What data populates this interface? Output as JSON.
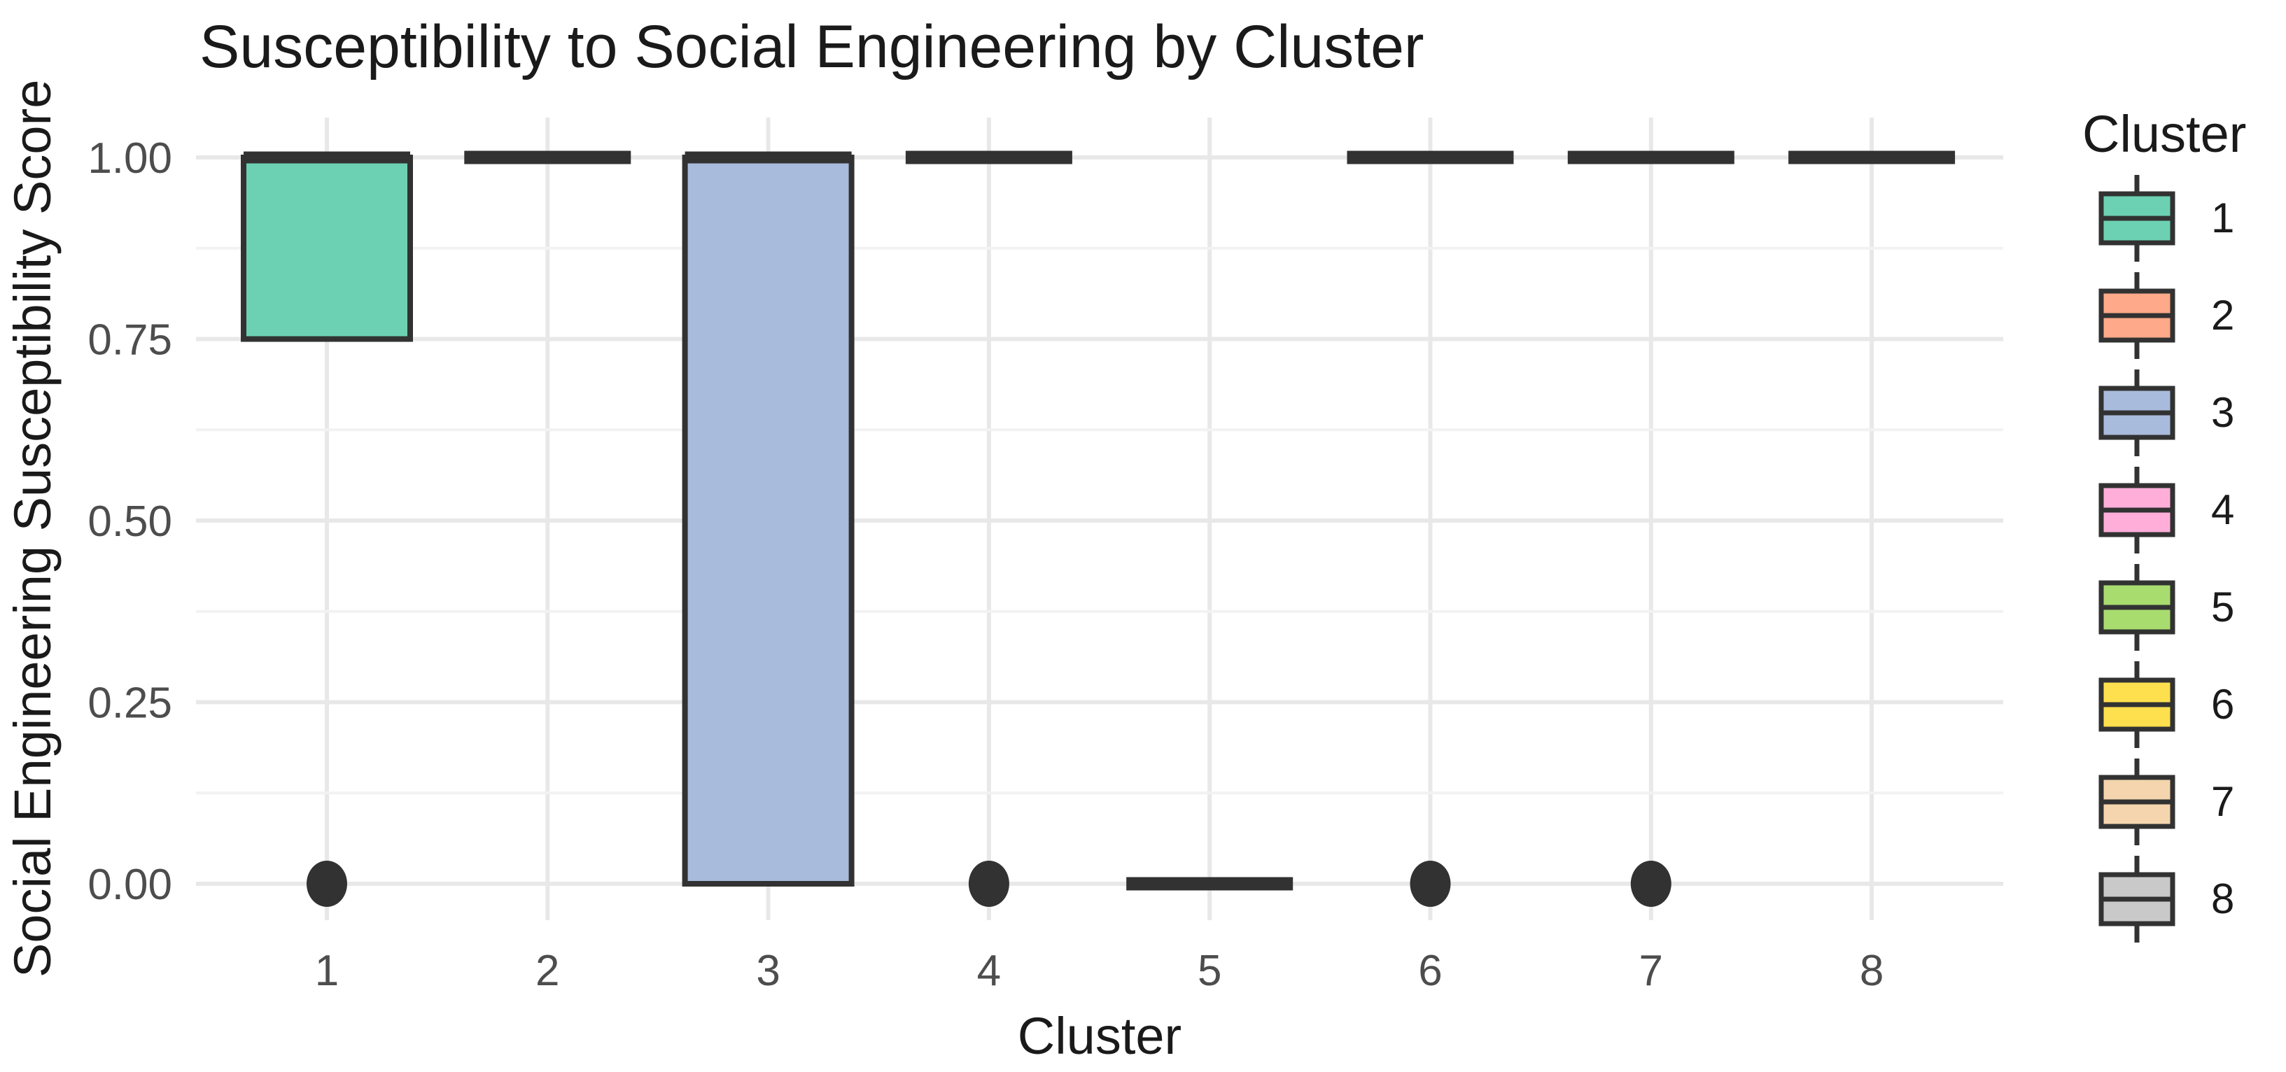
{
  "figure": {
    "title": "Susceptibility to Social Engineering by Cluster",
    "x_axis_title": "Cluster",
    "y_axis_title": "Social Engineering Susceptibility Score"
  },
  "legend": {
    "title": "Cluster",
    "entries": [
      {
        "label": "1",
        "color": "#6CD1B2"
      },
      {
        "label": "2",
        "color": "#FEA989"
      },
      {
        "label": "3",
        "color": "#A9BBDC"
      },
      {
        "label": "4",
        "color": "#FEAED9"
      },
      {
        "label": "5",
        "color": "#A8DC6F"
      },
      {
        "label": "6",
        "color": "#FEE04E"
      },
      {
        "label": "7",
        "color": "#F4D5AE"
      },
      {
        "label": "8",
        "color": "#C9C9C9"
      }
    ]
  },
  "chart_data": {
    "type": "boxplot",
    "title": "Susceptibility to Social Engineering by Cluster",
    "xlabel": "Cluster",
    "ylabel": "Social Engineering Susceptibility Score",
    "ylim": [
      0,
      1
    ],
    "y_ticks": [
      0.0,
      0.25,
      0.5,
      0.75,
      1.0
    ],
    "y_tick_labels": [
      "0.00",
      "0.25",
      "0.50",
      "0.75",
      "1.00"
    ],
    "y_minor_ticks": [
      0.125,
      0.375,
      0.625,
      0.875
    ],
    "x_tick_labels": [
      "1",
      "2",
      "3",
      "4",
      "5",
      "6",
      "7",
      "8"
    ],
    "grid": {
      "major": true,
      "minor": true
    },
    "legend_position": "right",
    "boxes": [
      {
        "cluster": "1",
        "fill": "#6CD1B2",
        "q1": 0.75,
        "median": 1.0,
        "q3": 1.0,
        "whisker_low": 0.75,
        "whisker_high": 1.0,
        "outliers": [
          0.0
        ]
      },
      {
        "cluster": "2",
        "fill": "#FEA989",
        "q1": 1.0,
        "median": 1.0,
        "q3": 1.0,
        "whisker_low": 1.0,
        "whisker_high": 1.0,
        "outliers": []
      },
      {
        "cluster": "3",
        "fill": "#A9BBDC",
        "q1": 0.0,
        "median": 1.0,
        "q3": 1.0,
        "whisker_low": 0.0,
        "whisker_high": 1.0,
        "outliers": []
      },
      {
        "cluster": "4",
        "fill": "#FEAED9",
        "q1": 1.0,
        "median": 1.0,
        "q3": 1.0,
        "whisker_low": 1.0,
        "whisker_high": 1.0,
        "outliers": [
          0.0
        ]
      },
      {
        "cluster": "5",
        "fill": "#A8DC6F",
        "q1": 0.0,
        "median": 0.0,
        "q3": 0.0,
        "whisker_low": 0.0,
        "whisker_high": 0.0,
        "outliers": []
      },
      {
        "cluster": "6",
        "fill": "#FEE04E",
        "q1": 1.0,
        "median": 1.0,
        "q3": 1.0,
        "whisker_low": 1.0,
        "whisker_high": 1.0,
        "outliers": [
          0.0
        ]
      },
      {
        "cluster": "7",
        "fill": "#F4D5AE",
        "q1": 1.0,
        "median": 1.0,
        "q3": 1.0,
        "whisker_low": 1.0,
        "whisker_high": 1.0,
        "outliers": [
          0.0
        ]
      },
      {
        "cluster": "8",
        "fill": "#C9C9C9",
        "q1": 1.0,
        "median": 1.0,
        "q3": 1.0,
        "whisker_low": 1.0,
        "whisker_high": 1.0,
        "outliers": []
      }
    ],
    "style_colors": {
      "box_border": "#323232",
      "outlier": "#323232",
      "grid_major": "#E8E8E8",
      "grid_minor": "#F2F2F2",
      "tick_label": "#4D4D4D",
      "text": "#1A1A1A",
      "background": "#FFFFFF"
    }
  }
}
